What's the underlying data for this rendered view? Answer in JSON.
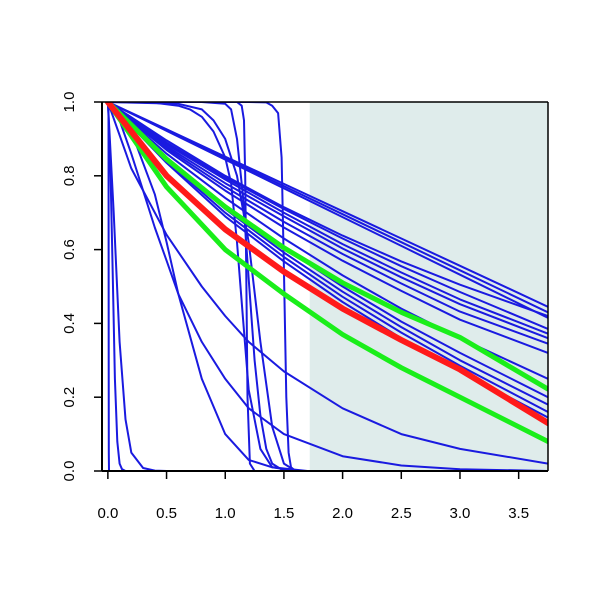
{
  "chart_data": {
    "type": "line",
    "title": "",
    "xlabel": "",
    "ylabel": "",
    "xlim": [
      -0.05,
      3.75
    ],
    "ylim": [
      0.0,
      1.0
    ],
    "x_ticks": [
      0.0,
      0.5,
      1.0,
      1.5,
      2.0,
      2.5,
      3.0,
      3.5
    ],
    "x_tick_labels": [
      "0.0",
      "0.5",
      "1.0",
      "1.5",
      "2.0",
      "2.5",
      "3.0",
      "3.5"
    ],
    "y_ticks": [
      0.0,
      0.2,
      0.4,
      0.6,
      0.8,
      1.0
    ],
    "y_tick_labels": [
      "0.0",
      "0.2",
      "0.4",
      "0.6",
      "0.8",
      "1.0"
    ],
    "grid": false,
    "legend": "none",
    "shaded_region": {
      "x_from": 1.72,
      "x_to": 3.75,
      "color": "#dfeceb"
    },
    "colors": {
      "blue": "#1a1ae0",
      "red": "#ff1a1a",
      "green": "#1aee1a",
      "axis": "#000000"
    },
    "series": [
      {
        "color": "blue",
        "width": 2,
        "x": [
          0,
          0.5,
          1,
          1.5,
          2,
          2.5,
          3,
          3.75
        ],
        "y": [
          1.0,
          0.926,
          0.852,
          0.778,
          0.704,
          0.63,
          0.556,
          0.445
        ]
      },
      {
        "color": "blue",
        "width": 2,
        "x": [
          0,
          0.5,
          1,
          1.5,
          2,
          2.5,
          3,
          3.75
        ],
        "y": [
          1.0,
          0.924,
          0.848,
          0.772,
          0.696,
          0.62,
          0.544,
          0.43
        ]
      },
      {
        "color": "blue",
        "width": 2,
        "x": [
          0,
          0.5,
          1,
          1.5,
          2,
          2.5,
          3,
          3.75
        ],
        "y": [
          1.0,
          0.922,
          0.844,
          0.766,
          0.688,
          0.61,
          0.532,
          0.415
        ]
      },
      {
        "color": "blue",
        "width": 2,
        "x": [
          0,
          0.5,
          1,
          1.5,
          2,
          2.5,
          3,
          3.75
        ],
        "y": [
          1.0,
          0.896,
          0.8,
          0.715,
          0.638,
          0.568,
          0.505,
          0.42
        ]
      },
      {
        "color": "blue",
        "width": 2,
        "x": [
          0,
          0.5,
          1,
          1.5,
          2,
          2.5,
          3,
          3.75
        ],
        "y": [
          1.0,
          0.89,
          0.795,
          0.71,
          0.63,
          0.555,
          0.485,
          0.385
        ]
      },
      {
        "color": "blue",
        "width": 2,
        "x": [
          0,
          0.5,
          1,
          1.5,
          2,
          2.5,
          3,
          3.75
        ],
        "y": [
          1.0,
          0.885,
          0.79,
          0.7,
          0.615,
          0.538,
          0.465,
          0.372
        ]
      },
      {
        "color": "blue",
        "width": 2,
        "x": [
          0,
          0.5,
          1,
          1.5,
          2,
          2.5,
          3,
          3.75
        ],
        "y": [
          1.0,
          0.88,
          0.78,
          0.69,
          0.603,
          0.525,
          0.452,
          0.36
        ]
      },
      {
        "color": "blue",
        "width": 2,
        "x": [
          0,
          0.5,
          1,
          1.5,
          2,
          2.5,
          3,
          3.75
        ],
        "y": [
          1.0,
          0.875,
          0.77,
          0.675,
          0.588,
          0.508,
          0.432,
          0.345
        ]
      },
      {
        "color": "blue",
        "width": 2,
        "x": [
          0,
          0.5,
          1,
          1.5,
          2,
          2.5,
          3,
          3.75
        ],
        "y": [
          1.0,
          0.87,
          0.76,
          0.66,
          0.57,
          0.488,
          0.41,
          0.32
        ]
      },
      {
        "color": "blue",
        "width": 2,
        "x": [
          0,
          0.5,
          1,
          1.5,
          2,
          2.5,
          3,
          3.75
        ],
        "y": [
          1.0,
          0.86,
          0.74,
          0.63,
          0.53,
          0.44,
          0.36,
          0.25
        ]
      },
      {
        "color": "blue",
        "width": 2,
        "x": [
          0,
          0.5,
          1,
          1.5,
          2,
          2.5,
          3,
          3.75
        ],
        "y": [
          1.0,
          0.85,
          0.72,
          0.605,
          0.5,
          0.405,
          0.32,
          0.2
        ]
      },
      {
        "color": "blue",
        "width": 2,
        "x": [
          0,
          0.5,
          1,
          1.5,
          2,
          2.5,
          3,
          3.75
        ],
        "y": [
          1.0,
          0.845,
          0.71,
          0.592,
          0.486,
          0.39,
          0.3,
          0.18
        ]
      },
      {
        "color": "blue",
        "width": 2,
        "x": [
          0,
          0.5,
          1,
          1.5,
          2,
          2.5,
          3,
          3.75
        ],
        "y": [
          1.0,
          0.84,
          0.7,
          0.58,
          0.472,
          0.375,
          0.285,
          0.16
        ]
      },
      {
        "color": "blue",
        "width": 2,
        "x": [
          0,
          0.5,
          1,
          1.5,
          2,
          2.5,
          3,
          3.75
        ],
        "y": [
          1.0,
          0.835,
          0.69,
          0.568,
          0.458,
          0.36,
          0.27,
          0.145
        ]
      },
      {
        "color": "blue",
        "width": 2,
        "x": [
          0,
          0.2,
          0.5,
          0.8,
          1.0,
          1.2,
          1.5,
          2.0,
          2.5,
          3.0,
          3.75
        ],
        "y": [
          1.0,
          0.82,
          0.64,
          0.5,
          0.42,
          0.35,
          0.27,
          0.17,
          0.1,
          0.06,
          0.02
        ]
      },
      {
        "color": "blue",
        "width": 2,
        "x": [
          0,
          0.1,
          0.2,
          0.3,
          0.4,
          0.5,
          0.6,
          0.8,
          1.0,
          1.2,
          1.5,
          2.0,
          2.5,
          3.0,
          3.75
        ],
        "y": [
          1.0,
          0.95,
          0.86,
          0.76,
          0.66,
          0.57,
          0.48,
          0.35,
          0.25,
          0.17,
          0.1,
          0.04,
          0.015,
          0.005,
          0.0
        ]
      },
      {
        "color": "blue",
        "width": 2,
        "x": [
          0,
          0.2,
          0.4,
          0.5,
          0.6,
          0.8,
          1.0,
          1.2,
          1.4,
          1.7,
          2.0
        ],
        "y": [
          1.0,
          0.92,
          0.75,
          0.62,
          0.48,
          0.25,
          0.1,
          0.03,
          0.01,
          0.0,
          0.0
        ]
      },
      {
        "color": "blue",
        "width": 2,
        "x": [
          0,
          0.05,
          0.1,
          0.15,
          0.2,
          0.3,
          0.4,
          0.5,
          0.6
        ],
        "y": [
          1.0,
          0.7,
          0.35,
          0.14,
          0.05,
          0.008,
          0.001,
          0.0,
          0.0
        ]
      },
      {
        "color": "blue",
        "width": 2,
        "x": [
          0,
          0.02,
          0.04,
          0.06,
          0.08,
          0.1,
          0.12,
          0.15
        ],
        "y": [
          1.0,
          0.85,
          0.55,
          0.25,
          0.08,
          0.02,
          0.005,
          0.0
        ]
      },
      {
        "color": "blue",
        "width": 2,
        "x": [
          0.005,
          0.006,
          0.007,
          0.008,
          0.01,
          0.02
        ],
        "y": [
          1.0,
          0.7,
          0.3,
          0.05,
          0.0,
          0.0
        ]
      },
      {
        "color": "blue",
        "width": 2,
        "x": [
          0,
          0.4,
          0.6,
          0.7,
          0.8,
          0.9,
          1.0,
          1.05,
          1.1,
          1.15,
          1.2,
          1.3,
          1.4,
          1.6
        ],
        "y": [
          1.0,
          0.998,
          0.99,
          0.98,
          0.96,
          0.92,
          0.85,
          0.78,
          0.62,
          0.42,
          0.22,
          0.06,
          0.01,
          0.0
        ]
      },
      {
        "color": "blue",
        "width": 2,
        "x": [
          0,
          0.6,
          0.8,
          0.9,
          1.0,
          1.1,
          1.2,
          1.3,
          1.4,
          1.5,
          1.6
        ],
        "y": [
          1.0,
          0.995,
          0.98,
          0.95,
          0.9,
          0.8,
          0.62,
          0.35,
          0.12,
          0.02,
          0.0
        ]
      },
      {
        "color": "blue",
        "width": 2,
        "x": [
          0,
          0.8,
          1.0,
          1.05,
          1.1,
          1.15,
          1.2,
          1.25,
          1.3,
          1.35,
          1.4,
          1.5
        ],
        "y": [
          1.0,
          1.0,
          0.995,
          0.98,
          0.9,
          0.75,
          0.52,
          0.3,
          0.15,
          0.06,
          0.02,
          0.0
        ]
      },
      {
        "color": "blue",
        "width": 2,
        "x": [
          0,
          1.1,
          1.14,
          1.16,
          1.17,
          1.18,
          1.19,
          1.21,
          1.25
        ],
        "y": [
          1.0,
          1.0,
          0.99,
          0.95,
          0.8,
          0.5,
          0.2,
          0.02,
          0.0
        ]
      },
      {
        "color": "blue",
        "width": 2,
        "x": [
          0,
          1.2,
          1.35,
          1.4,
          1.45,
          1.48,
          1.5,
          1.52,
          1.54,
          1.56,
          1.6
        ],
        "y": [
          1.0,
          1.0,
          0.999,
          0.99,
          0.97,
          0.85,
          0.55,
          0.2,
          0.05,
          0.01,
          0.0
        ]
      },
      {
        "color": "green",
        "width": 5,
        "x": [
          0,
          0.5,
          1,
          1.5,
          2,
          2.5,
          3,
          3.75
        ],
        "y": [
          1.0,
          0.845,
          0.716,
          0.605,
          0.51,
          0.43,
          0.362,
          0.222
        ]
      },
      {
        "color": "green",
        "width": 5,
        "x": [
          0,
          0.5,
          1,
          1.5,
          2,
          2.5,
          3,
          3.75
        ],
        "y": [
          1.0,
          0.77,
          0.6,
          0.48,
          0.37,
          0.28,
          0.2,
          0.08
        ]
      },
      {
        "color": "red",
        "width": 6,
        "x": [
          0,
          0.5,
          1,
          1.5,
          2,
          2.5,
          3,
          3.75
        ],
        "y": [
          1.0,
          0.8,
          0.655,
          0.54,
          0.44,
          0.355,
          0.275,
          0.13
        ]
      }
    ]
  }
}
